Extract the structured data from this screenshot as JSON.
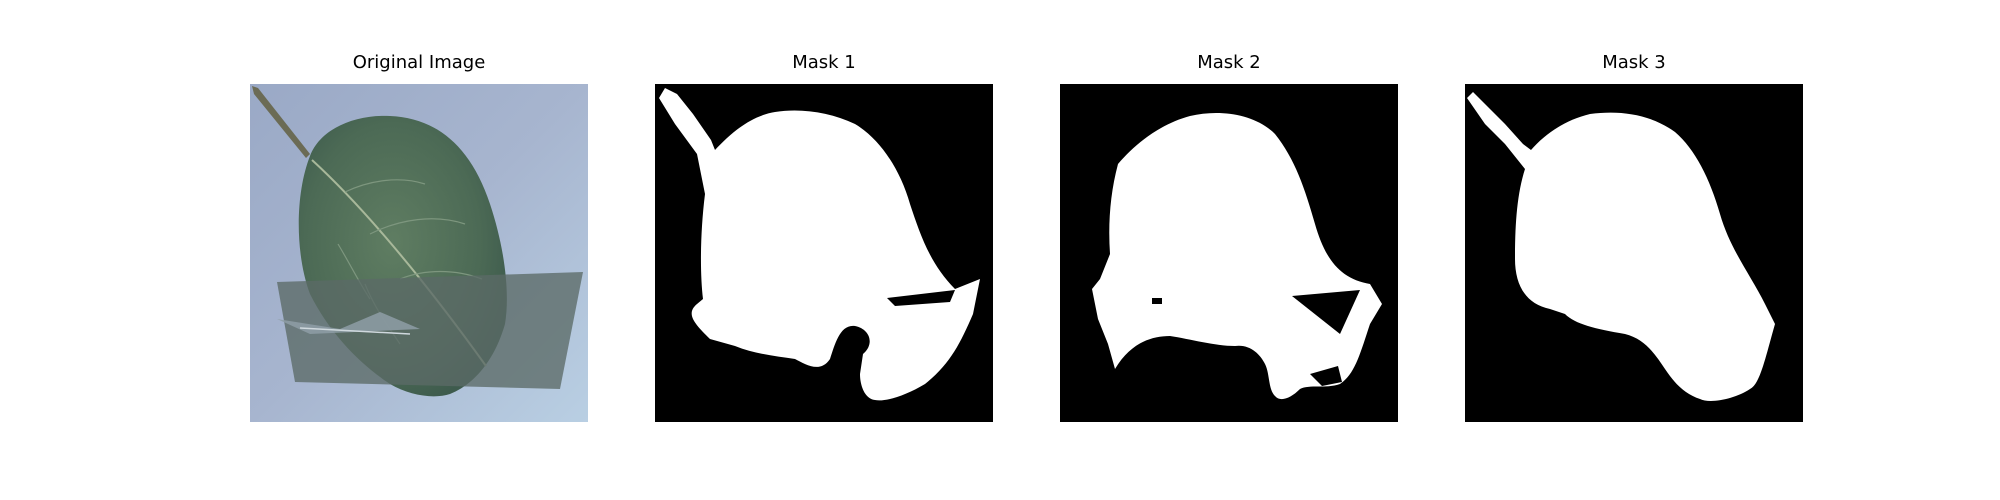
{
  "panels": [
    {
      "title": "Original Image"
    },
    {
      "title": "Mask 1"
    },
    {
      "title": "Mask 2"
    },
    {
      "title": "Mask 3"
    }
  ],
  "colors": {
    "background": "#ffffff",
    "mask_background": "#000000",
    "mask_foreground": "#ffffff",
    "leaf": "#53705a",
    "surface": "#a7b6cf"
  }
}
